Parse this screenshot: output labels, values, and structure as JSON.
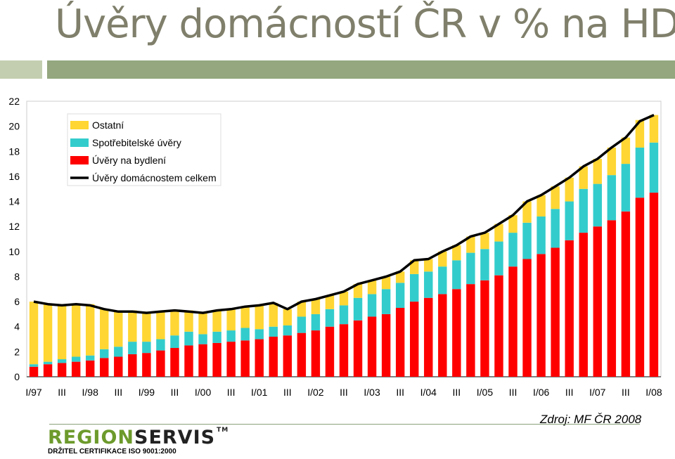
{
  "page": {
    "title": "Úvěry domácností ČR v % na HDP",
    "source": "Zdroj: MF ČR 2008",
    "logo_part1": "REGION",
    "logo_part2": "SERVIS",
    "logo_tm": "TM",
    "certification": "DRŽITEL CERTIFIKACE ISO 9001:2000"
  },
  "chart_data": {
    "type": "bar",
    "stacked": true,
    "ylim": [
      0,
      22
    ],
    "yticks": [
      0,
      2,
      4,
      6,
      8,
      10,
      12,
      14,
      16,
      18,
      20,
      22
    ],
    "grid": false,
    "legend_position": "top-left",
    "categories": [
      "I/97",
      "II/97",
      "III/97",
      "IV/97",
      "I/98",
      "II/98",
      "III/98",
      "IV/98",
      "I/99",
      "II/99",
      "III/99",
      "IV/99",
      "I/00",
      "II/00",
      "III/00",
      "IV/00",
      "I/01",
      "II/01",
      "III/01",
      "IV/01",
      "I/02",
      "II/02",
      "III/02",
      "IV/02",
      "I/03",
      "II/03",
      "III/03",
      "IV/03",
      "I/04",
      "II/04",
      "III/04",
      "IV/04",
      "I/05",
      "II/05",
      "III/05",
      "IV/05",
      "I/06",
      "II/06",
      "III/06",
      "IV/06",
      "I/07",
      "II/07",
      "III/07",
      "IV/07",
      "I/08"
    ],
    "tick_labels": [
      "I/97",
      "",
      "III",
      "",
      "I/98",
      "",
      "III",
      "",
      "I/99",
      "",
      "III",
      "",
      "I/00",
      "",
      "III",
      "",
      "I/01",
      "",
      "III",
      "",
      "I/02",
      "",
      "III",
      "",
      "I/03",
      "",
      "III",
      "",
      "I/04",
      "",
      "III",
      "",
      "I/05",
      "",
      "III",
      "",
      "I/06",
      "",
      "III",
      "",
      "I/07",
      "",
      "III",
      "",
      "I/08"
    ],
    "series": [
      {
        "name": "Úvěry na bydlení",
        "color": "#ff0000",
        "values": [
          0.8,
          1.0,
          1.1,
          1.2,
          1.3,
          1.5,
          1.6,
          1.8,
          1.9,
          2.1,
          2.3,
          2.5,
          2.6,
          2.7,
          2.8,
          2.9,
          3.0,
          3.2,
          3.3,
          3.5,
          3.7,
          4.0,
          4.2,
          4.5,
          4.8,
          5.0,
          5.5,
          6.0,
          6.3,
          6.6,
          7.0,
          7.4,
          7.7,
          8.1,
          8.8,
          9.4,
          9.8,
          10.3,
          10.9,
          11.5,
          12.0,
          12.5,
          13.2,
          14.3,
          14.7
        ]
      },
      {
        "name": "Spotřebitelské úvěry",
        "color": "#33cccc",
        "values": [
          0.2,
          0.2,
          0.3,
          0.4,
          0.4,
          0.7,
          0.8,
          1.0,
          0.9,
          0.9,
          1.0,
          1.1,
          0.8,
          0.9,
          0.9,
          1.0,
          0.8,
          0.8,
          0.8,
          1.3,
          1.3,
          1.4,
          1.5,
          1.8,
          1.8,
          2.0,
          2.0,
          2.2,
          2.1,
          2.2,
          2.3,
          2.5,
          2.5,
          2.7,
          2.7,
          2.9,
          3.0,
          3.1,
          3.1,
          3.5,
          3.4,
          3.6,
          3.8,
          4.0,
          4.0
        ]
      },
      {
        "name": "Ostatní",
        "color": "#ffd633",
        "values": [
          5.0,
          4.6,
          4.3,
          4.2,
          4.1,
          3.2,
          2.8,
          2.5,
          2.4,
          2.2,
          2.0,
          1.7,
          1.7,
          1.7,
          1.7,
          1.7,
          1.9,
          1.9,
          1.3,
          1.2,
          1.2,
          1.1,
          1.1,
          1.1,
          1.1,
          1.0,
          0.9,
          1.1,
          1.0,
          1.2,
          1.2,
          1.3,
          1.3,
          1.4,
          1.4,
          1.7,
          1.7,
          1.8,
          1.9,
          1.8,
          2.0,
          2.2,
          2.1,
          2.2,
          2.2
        ]
      },
      {
        "name": "Úvěry domácnostem celkem",
        "type": "line",
        "color": "#000000",
        "values": [
          6.0,
          5.8,
          5.7,
          5.8,
          5.7,
          5.4,
          5.2,
          5.2,
          5.1,
          5.2,
          5.3,
          5.2,
          5.1,
          5.3,
          5.4,
          5.6,
          5.7,
          5.9,
          5.4,
          6.0,
          6.2,
          6.5,
          6.8,
          7.4,
          7.7,
          8.0,
          8.4,
          9.3,
          9.4,
          10.0,
          10.5,
          11.2,
          11.5,
          12.2,
          12.9,
          14.0,
          14.5,
          15.2,
          15.9,
          16.8,
          17.4,
          18.3,
          19.1,
          20.4,
          20.9
        ]
      }
    ],
    "legend_order": [
      "Ostatní",
      "Spotřebitelské úvěry",
      "Úvěry na bydlení",
      "Úvěry domácnostem celkem"
    ]
  }
}
